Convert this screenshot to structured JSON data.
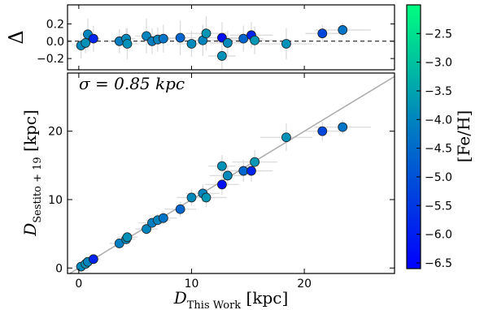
{
  "chart_data": [
    {
      "panel": "residual",
      "type": "scatter",
      "ylabel": "Δ",
      "xlim": [
        -1,
        28
      ],
      "ylim": [
        -0.33,
        0.42
      ],
      "yticks": [
        -0.2,
        0.0,
        0.2
      ],
      "yticklabels": [
        "−0.2",
        "0.0",
        "0.2"
      ],
      "reference_line": {
        "y": 0.0,
        "style": "dashed"
      },
      "points": [
        {
          "x": 0.2,
          "y": -0.05,
          "feh": -3.9,
          "xerr": 0.6,
          "yerr": 0.15
        },
        {
          "x": 0.6,
          "y": -0.02,
          "feh": -3.8,
          "xerr": 0.5,
          "yerr": 0.12
        },
        {
          "x": 0.8,
          "y": 0.08,
          "feh": -4.0,
          "xerr": 0.4,
          "yerr": 0.18
        },
        {
          "x": 1.3,
          "y": 0.03,
          "feh": -5.9,
          "xerr": 0.6,
          "yerr": 0.15
        },
        {
          "x": 3.6,
          "y": 0.0,
          "feh": -4.1,
          "xerr": 0.9,
          "yerr": 0.14
        },
        {
          "x": 4.2,
          "y": 0.03,
          "feh": -3.9,
          "xerr": 0.8,
          "yerr": 0.12
        },
        {
          "x": 4.3,
          "y": -0.03,
          "feh": -3.8,
          "xerr": 0.9,
          "yerr": 0.18
        },
        {
          "x": 6.0,
          "y": 0.06,
          "feh": -4.0,
          "xerr": 1.0,
          "yerr": 0.2
        },
        {
          "x": 6.5,
          "y": 0.0,
          "feh": -4.1,
          "xerr": 1.2,
          "yerr": 0.15
        },
        {
          "x": 7.0,
          "y": 0.02,
          "feh": -4.0,
          "xerr": 1.1,
          "yerr": 0.14
        },
        {
          "x": 7.5,
          "y": 0.03,
          "feh": -4.3,
          "xerr": 1.2,
          "yerr": 0.16
        },
        {
          "x": 9.0,
          "y": 0.04,
          "feh": -4.6,
          "xerr": 1.4,
          "yerr": 0.2
        },
        {
          "x": 10.0,
          "y": -0.03,
          "feh": -3.9,
          "xerr": 1.3,
          "yerr": 0.15
        },
        {
          "x": 11.0,
          "y": 0.01,
          "feh": -4.0,
          "xerr": 1.5,
          "yerr": 0.18
        },
        {
          "x": 11.3,
          "y": 0.09,
          "feh": -3.7,
          "xerr": 1.8,
          "yerr": 0.2
        },
        {
          "x": 12.7,
          "y": 0.04,
          "feh": -6.3,
          "xerr": 1.5,
          "yerr": 0.18
        },
        {
          "x": 12.7,
          "y": -0.17,
          "feh": -3.8,
          "xerr": 1.2,
          "yerr": 0.15
        },
        {
          "x": 13.2,
          "y": -0.02,
          "feh": -3.9,
          "xerr": 1.6,
          "yerr": 0.14
        },
        {
          "x": 14.6,
          "y": 0.03,
          "feh": -4.6,
          "xerr": 1.8,
          "yerr": 0.15
        },
        {
          "x": 15.3,
          "y": 0.07,
          "feh": -5.9,
          "xerr": 1.9,
          "yerr": 0.15
        },
        {
          "x": 15.6,
          "y": 0.01,
          "feh": -3.7,
          "xerr": 2.0,
          "yerr": 0.16
        },
        {
          "x": 18.4,
          "y": -0.03,
          "feh": -3.8,
          "xerr": 2.3,
          "yerr": 0.18
        },
        {
          "x": 21.6,
          "y": 0.09,
          "feh": -5.2,
          "xerr": 1.5,
          "yerr": 0.1
        },
        {
          "x": 23.4,
          "y": 0.13,
          "feh": -4.3,
          "xerr": 2.5,
          "yerr": 0.08
        }
      ]
    },
    {
      "panel": "main",
      "type": "scatter",
      "xlabel": "D_This Work [kpc]",
      "ylabel": "D_Sestito+19 [kpc]",
      "annotation": "σ = 0.85 kpc",
      "xlim": [
        -1,
        28
      ],
      "ylim": [
        -0.8,
        28.5
      ],
      "xticks": [
        0,
        10,
        20
      ],
      "yticks": [
        0,
        10,
        20
      ],
      "one_to_one_line": true,
      "points": [
        {
          "x": 0.2,
          "y": 0.2,
          "feh": -3.9,
          "xerr": 0.6,
          "yerr": 0.3
        },
        {
          "x": 0.6,
          "y": 0.6,
          "feh": -3.8,
          "xerr": 0.5,
          "yerr": 0.3
        },
        {
          "x": 0.8,
          "y": 0.9,
          "feh": -4.0,
          "xerr": 0.4,
          "yerr": 0.3
        },
        {
          "x": 1.3,
          "y": 1.3,
          "feh": -5.9,
          "xerr": 0.6,
          "yerr": 0.4
        },
        {
          "x": 3.6,
          "y": 3.6,
          "feh": -4.1,
          "xerr": 0.9,
          "yerr": 0.5
        },
        {
          "x": 4.2,
          "y": 4.2,
          "feh": -3.9,
          "xerr": 0.8,
          "yerr": 0.5
        },
        {
          "x": 4.3,
          "y": 4.5,
          "feh": -3.8,
          "xerr": 0.9,
          "yerr": 0.6
        },
        {
          "x": 6.0,
          "y": 5.7,
          "feh": -4.0,
          "xerr": 1.0,
          "yerr": 0.8
        },
        {
          "x": 6.5,
          "y": 6.6,
          "feh": -4.1,
          "xerr": 1.2,
          "yerr": 0.8
        },
        {
          "x": 7.0,
          "y": 7.0,
          "feh": -4.0,
          "xerr": 1.1,
          "yerr": 0.9
        },
        {
          "x": 7.5,
          "y": 7.3,
          "feh": -4.3,
          "xerr": 1.2,
          "yerr": 0.9
        },
        {
          "x": 9.0,
          "y": 8.6,
          "feh": -4.6,
          "xerr": 1.4,
          "yerr": 1.1
        },
        {
          "x": 10.0,
          "y": 10.3,
          "feh": -3.9,
          "xerr": 1.3,
          "yerr": 1.2
        },
        {
          "x": 11.0,
          "y": 10.9,
          "feh": -4.0,
          "xerr": 1.5,
          "yerr": 1.3
        },
        {
          "x": 11.3,
          "y": 10.3,
          "feh": -3.7,
          "xerr": 1.8,
          "yerr": 1.4
        },
        {
          "x": 12.7,
          "y": 12.2,
          "feh": -6.3,
          "xerr": 1.5,
          "yerr": 1.5
        },
        {
          "x": 12.7,
          "y": 14.9,
          "feh": -3.8,
          "xerr": 1.2,
          "yerr": 1.6
        },
        {
          "x": 13.2,
          "y": 13.5,
          "feh": -3.9,
          "xerr": 1.6,
          "yerr": 1.5
        },
        {
          "x": 14.6,
          "y": 14.2,
          "feh": -4.6,
          "xerr": 1.8,
          "yerr": 1.6
        },
        {
          "x": 15.3,
          "y": 14.2,
          "feh": -5.9,
          "xerr": 1.9,
          "yerr": 1.6
        },
        {
          "x": 15.6,
          "y": 15.5,
          "feh": -3.7,
          "xerr": 2.0,
          "yerr": 1.7
        },
        {
          "x": 18.4,
          "y": 19.1,
          "feh": -3.8,
          "xerr": 2.3,
          "yerr": 2.0
        },
        {
          "x": 21.6,
          "y": 20.0,
          "feh": -5.2,
          "xerr": 1.5,
          "yerr": 1.4
        },
        {
          "x": 23.4,
          "y": 20.6,
          "feh": -4.3,
          "xerr": 2.5,
          "yerr": 1.0
        }
      ]
    },
    {
      "panel": "colorbar",
      "type": "colorbar",
      "label": "[Fe/H]",
      "range": [
        -6.6,
        -2.0
      ],
      "ticks": [
        -2.5,
        -3.0,
        -3.5,
        -4.0,
        -4.5,
        -5.0,
        -5.5,
        -6.0,
        -6.5
      ],
      "ticklabels": [
        "−2.5",
        "−3.0",
        "−3.5",
        "−4.0",
        "−4.5",
        "−5.0",
        "−5.5",
        "−6.0",
        "−6.5"
      ],
      "colors": {
        "low": "#0000ff",
        "high": "#00ff7f"
      }
    }
  ],
  "colors": {
    "errorbar": "#dcdcdc",
    "one_to_one": "#aaaaaa",
    "marker_edge": "#222222"
  }
}
